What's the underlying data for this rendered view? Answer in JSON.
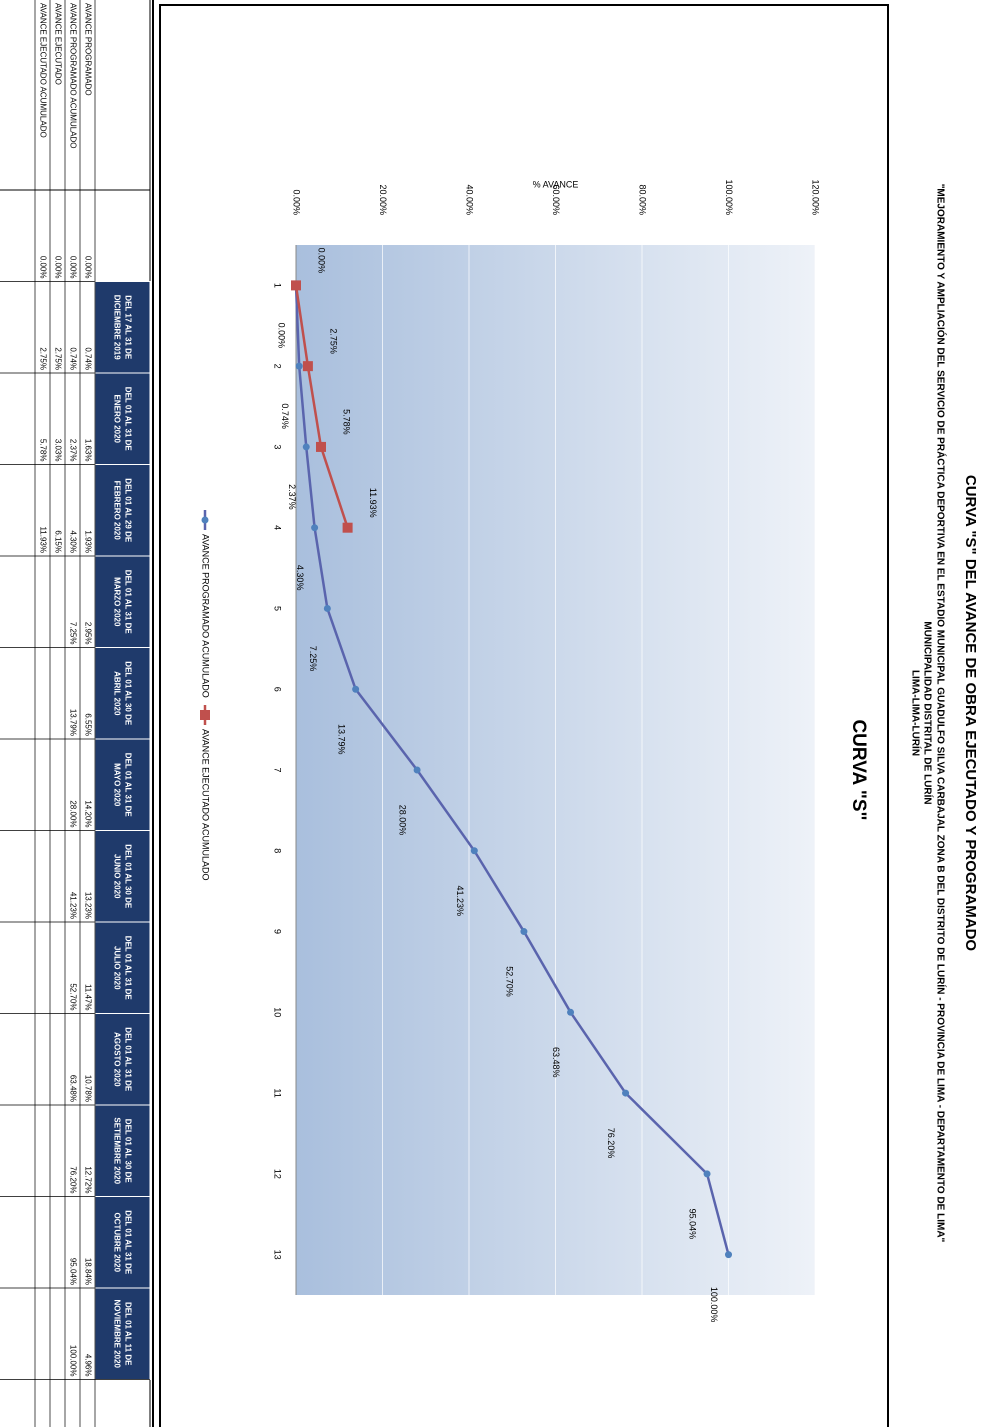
{
  "header": {
    "title": "CURVA \"S\" DEL AVANCE DE OBRA EJECUTADO Y PROGRAMADO",
    "subtitle": "\"MEJORAMIENTO Y AMPLIACIÓN DEL SERVICIO DE PRÁCTICA DEPORTIVA EN EL ESTADIO MUNICIPAL GUADULFO SILVA CARBAJAL ZONA B DEL DISTRITO DE LURÍN - PROVINCIA DE LIMA - DEPARTAMENTO DE LIMA\"",
    "entity": "MUNICIPALIDAD DISTRITAL DE LURÍN",
    "location": "LIMA-LIMA-LURÍN"
  },
  "chart_data": {
    "type": "line",
    "title": "CURVA \"S\"",
    "y_label": "% AVANCE",
    "categories": [
      "1",
      "2",
      "3",
      "4",
      "5",
      "6",
      "7",
      "8",
      "9",
      "10",
      "11",
      "12",
      "13"
    ],
    "series": [
      {
        "name": "AVANCE PROGRAMADO ACUMULADO",
        "color": "#5a64ad",
        "marker_color": "#4f81bd",
        "values": [
          0,
          0.74,
          2.37,
          4.3,
          7.25,
          13.79,
          28.0,
          41.23,
          52.7,
          63.48,
          76.2,
          95.04,
          100.0
        ],
        "value_labels": [
          "0.00%",
          "0.74%",
          "2.37%",
          "4.30%",
          "7.25%",
          "13.79%",
          "28.00%",
          "41.23%",
          "52.70%",
          "63.48%",
          "76.20%",
          "95.04%",
          "100.00%"
        ]
      },
      {
        "name": "AVANCE EJECUTADO ACUMULADO",
        "color": "#c0504d",
        "marker_color": "#c0504d",
        "values": [
          0,
          2.75,
          5.78,
          11.93,
          null,
          null,
          null,
          null,
          null,
          null,
          null,
          null,
          null
        ],
        "value_labels": [
          "0.00%",
          "2.75%",
          "5.78%",
          "11.93%",
          null,
          null,
          null,
          null,
          null,
          null,
          null,
          null,
          null
        ]
      }
    ],
    "ylim": [
      0,
      120
    ],
    "yticks": [
      {
        "value": 0,
        "label": "0.00%"
      },
      {
        "value": 20,
        "label": "20.00%"
      },
      {
        "value": 40,
        "label": "40.00%"
      },
      {
        "value": 60,
        "label": "60.00%"
      },
      {
        "value": 80,
        "label": "80.00%"
      },
      {
        "value": 100,
        "label": "100.00%"
      },
      {
        "value": 120,
        "label": "120.00%"
      }
    ],
    "grid": true
  },
  "table": {
    "columns": [
      null,
      "DEL 17 AL 31 DE DICIEMBRE 2019",
      "DEL 01 AL 31 DE ENERO 2020",
      "DEL 01 AL 29 DE FEBRERO 2020",
      "DEL 01 AL 31 DE MARZO 2020",
      "DEL 01 AL 30 DE ABRIL 2020",
      "DEL 01 AL 31 DE MAYO 2020",
      "DEL 01 AL 30 DE JUNIO 2020",
      "DEL 01 AL 31 DE JULIO 2020",
      "DEL 01 AL 31 DE AGOSTO 2020",
      "DEL 01 AL 30 DE SETIEMBRE 2020",
      "DEL 01 AL 31 DE OCTUBRE 2020",
      "DEL 01 AL 11 DE NOVIEMBRE 2020"
    ],
    "rows": [
      {
        "label": "AVANCE PROGRAMADO",
        "cells": [
          "0.00%",
          "0.74%",
          "1.63%",
          "1.93%",
          "2.95%",
          "6.55%",
          "14.20%",
          "13.23%",
          "11.47%",
          "10.78%",
          "12.72%",
          "18.84%",
          "4.96%"
        ]
      },
      {
        "label": "AVANCE PROGRAMADO ACUMULADO",
        "cells": [
          "0.00%",
          "0.74%",
          "2.37%",
          "4.30%",
          "7.25%",
          "13.79%",
          "28.00%",
          "41.23%",
          "52.70%",
          "63.48%",
          "76.20%",
          "95.04%",
          "100.00%"
        ]
      },
      {
        "label": "AVANCE EJECUTADO",
        "cells": [
          "0.00%",
          "2.75%",
          "3.03%",
          "6.15%",
          null,
          null,
          null,
          null,
          null,
          null,
          null,
          null,
          null
        ]
      },
      {
        "label": "AVANCE EJECUTADO ACUMULADO",
        "cells": [
          "0.00%",
          "2.75%",
          "5.78%",
          "11.93%",
          null,
          null,
          null,
          null,
          null,
          null,
          null,
          null,
          null
        ]
      }
    ]
  }
}
